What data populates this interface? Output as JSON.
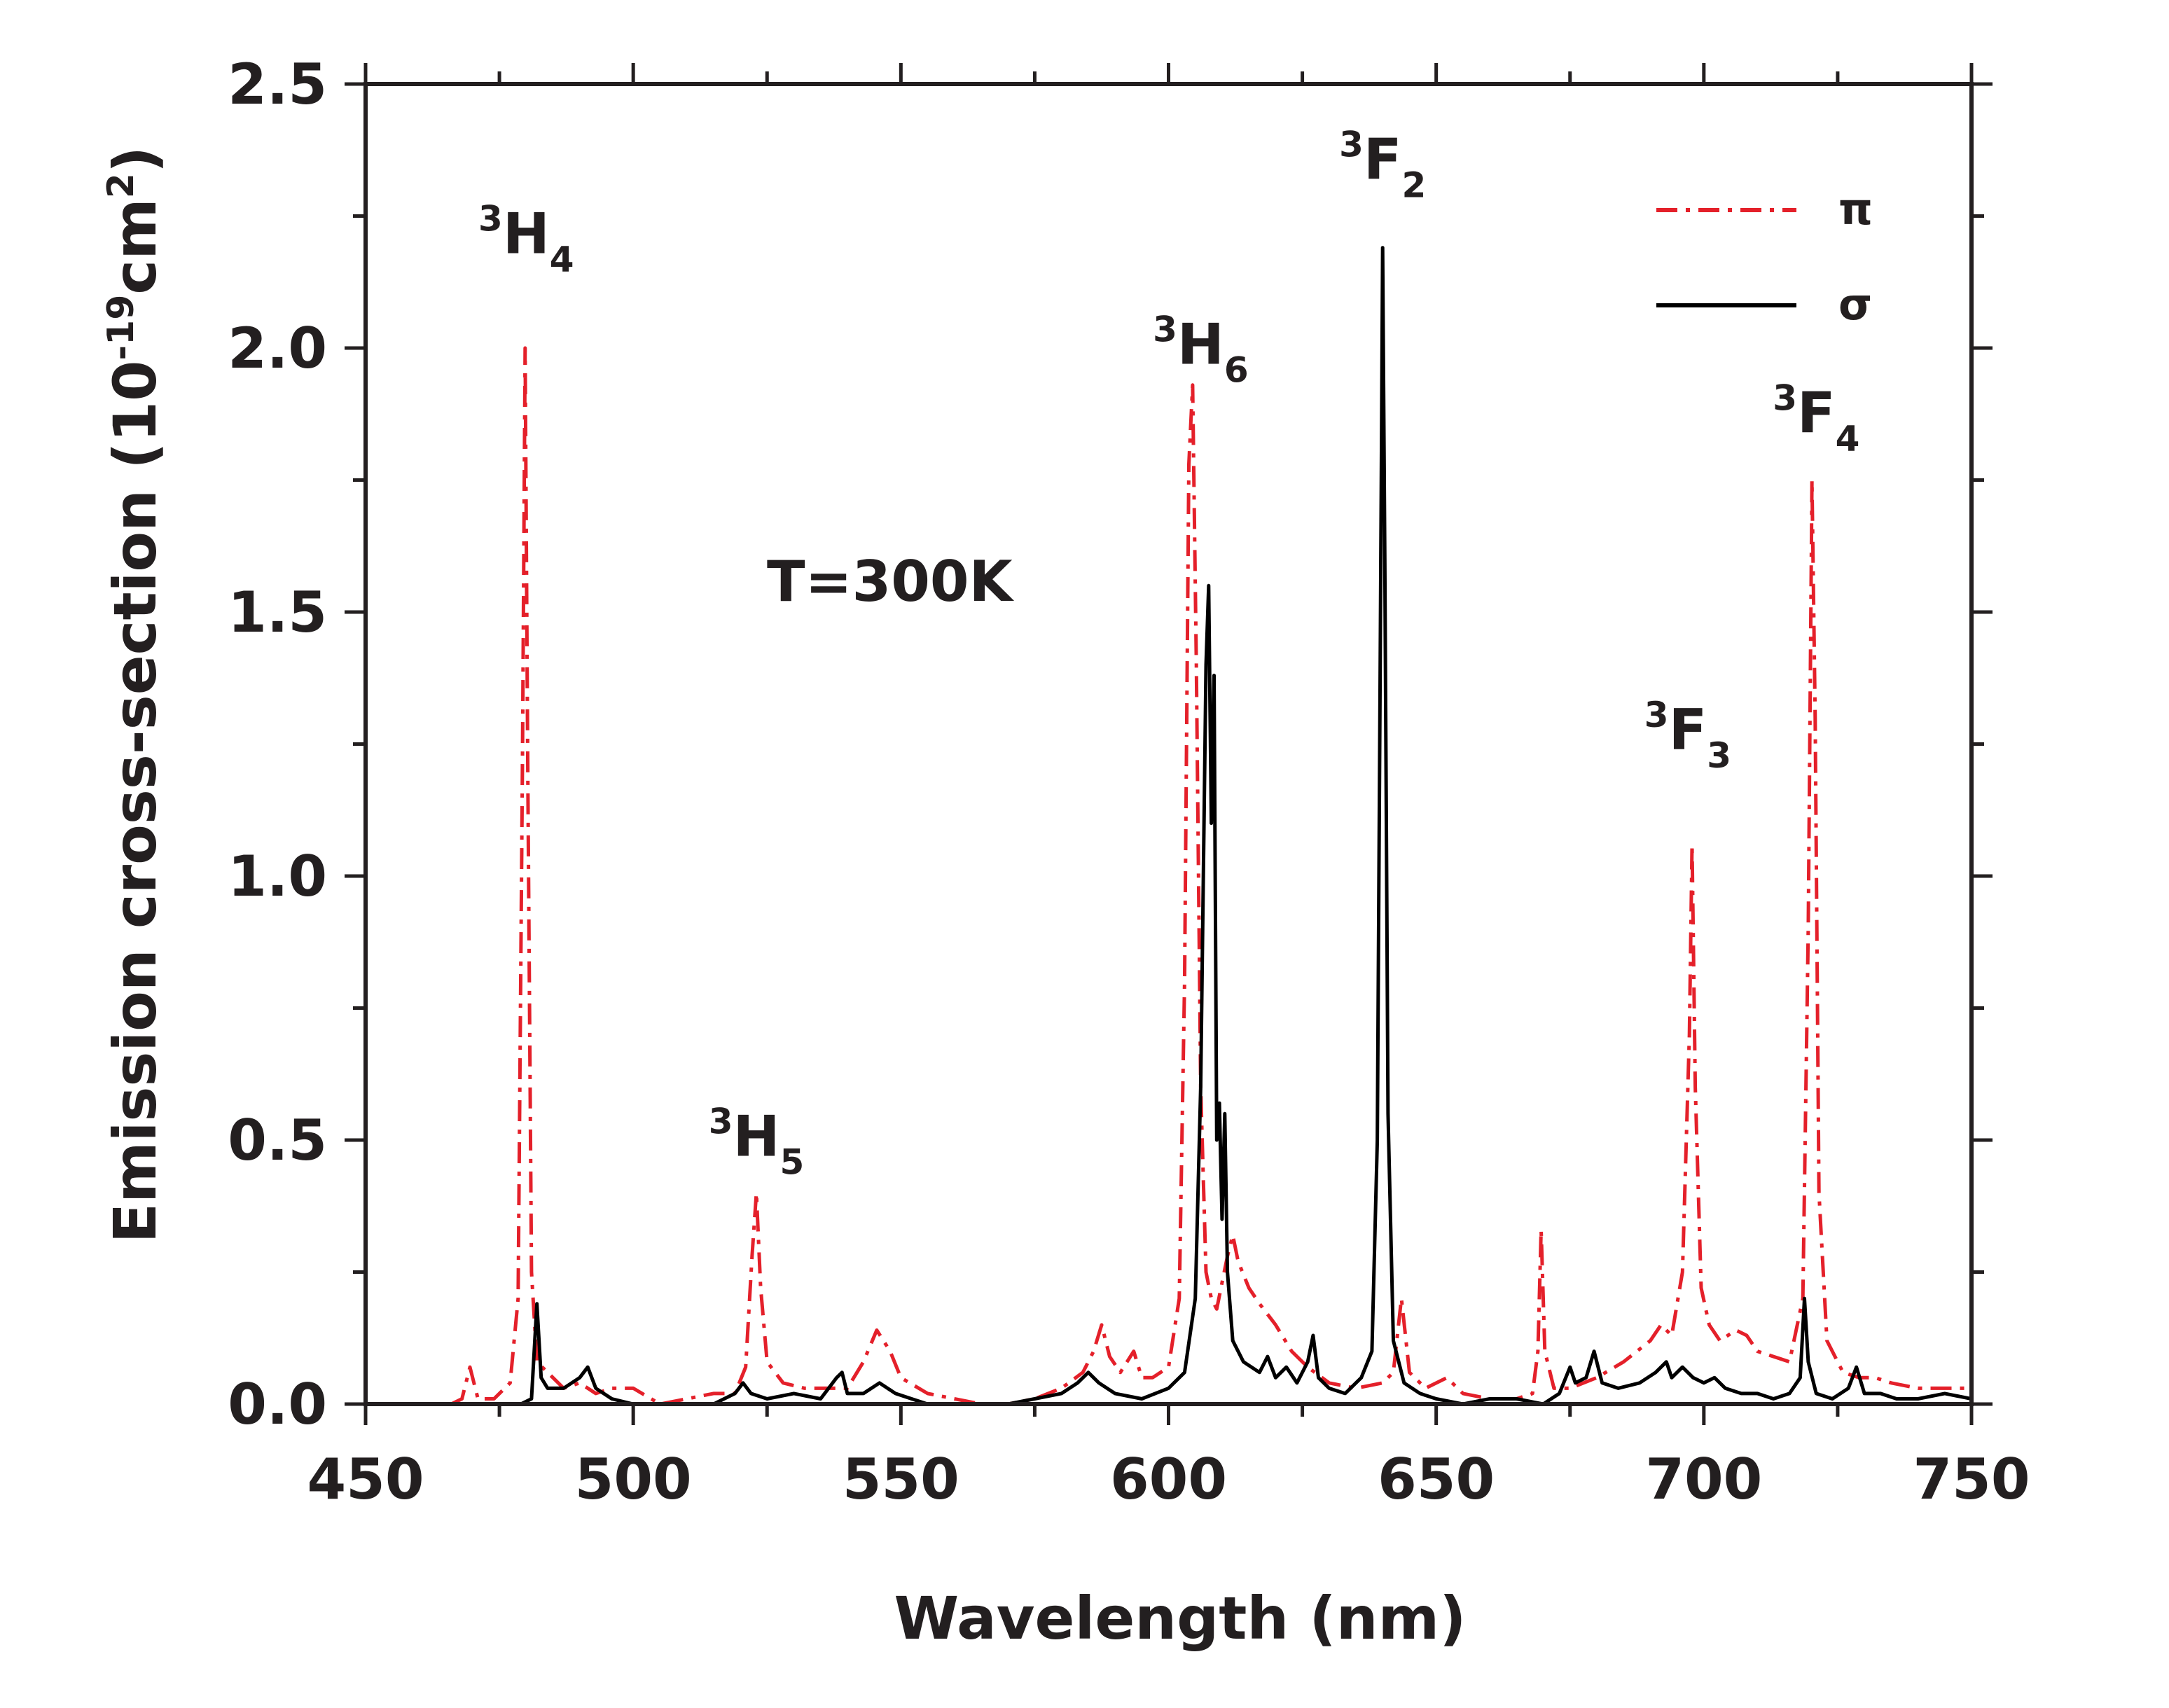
{
  "chart_data": {
    "type": "line",
    "title": "",
    "xlabel": "Wavelength (nm)",
    "ylabel": {
      "main": "Emission cross-section (10",
      "exp": "-19",
      "unit": "cm",
      "unit_exp": "2",
      "close": ")"
    },
    "xlim": [
      450,
      750
    ],
    "ylim": [
      0,
      2.5
    ],
    "x_ticks": [
      450,
      500,
      550,
      600,
      650,
      700,
      750
    ],
    "x_tick_labels": [
      "450",
      "500",
      "550",
      "600",
      "650",
      "700",
      "750"
    ],
    "y_ticks": [
      0,
      0.5,
      1.0,
      1.5,
      2.0,
      2.5
    ],
    "y_tick_labels": [
      "0.0",
      "0.5",
      "1.0",
      "1.5",
      "2.0",
      "2.5"
    ],
    "grid": false,
    "legend_position": "top-right",
    "temperature_label": "T=300K",
    "annotations": [
      {
        "sup": "3",
        "base": "H",
        "sub": "4",
        "x": 480,
        "y": 2.18
      },
      {
        "sup": "3",
        "base": "H",
        "sub": "5",
        "x": 523,
        "y": 0.47
      },
      {
        "sup": "3",
        "base": "H",
        "sub": "6",
        "x": 606,
        "y": 1.97
      },
      {
        "sup": "3",
        "base": "F",
        "sub": "2",
        "x": 640,
        "y": 2.32
      },
      {
        "sup": "3",
        "base": "F",
        "sub": "3",
        "x": 697,
        "y": 1.24
      },
      {
        "sup": "3",
        "base": "F",
        "sub": "4",
        "x": 721,
        "y": 1.84
      }
    ],
    "series": [
      {
        "name": "π",
        "color": "#e4202a",
        "dash": "dashdot",
        "points": [
          [
            466,
            0.0
          ],
          [
            468,
            0.01
          ],
          [
            469.5,
            0.07
          ],
          [
            471,
            0.01
          ],
          [
            474,
            0.01
          ],
          [
            477,
            0.04
          ],
          [
            478.5,
            0.2
          ],
          [
            479.3,
            1.2
          ],
          [
            479.8,
            2.0
          ],
          [
            480.3,
            1.2
          ],
          [
            481,
            0.25
          ],
          [
            482,
            0.08
          ],
          [
            484,
            0.06
          ],
          [
            487,
            0.03
          ],
          [
            490,
            0.04
          ],
          [
            493,
            0.02
          ],
          [
            496,
            0.03
          ],
          [
            500,
            0.03
          ],
          [
            505,
            0.0
          ],
          [
            510,
            0.01
          ],
          [
            515,
            0.02
          ],
          [
            519,
            0.02
          ],
          [
            521,
            0.07
          ],
          [
            522.2,
            0.28
          ],
          [
            523,
            0.4
          ],
          [
            523.8,
            0.22
          ],
          [
            525,
            0.08
          ],
          [
            528,
            0.04
          ],
          [
            532,
            0.03
          ],
          [
            536,
            0.03
          ],
          [
            540,
            0.03
          ],
          [
            543,
            0.08
          ],
          [
            545.5,
            0.14
          ],
          [
            548,
            0.1
          ],
          [
            550,
            0.05
          ],
          [
            555,
            0.02
          ],
          [
            560,
            0.01
          ],
          [
            565,
            0.0
          ],
          [
            570,
            0.0
          ],
          [
            575,
            0.01
          ],
          [
            580,
            0.03
          ],
          [
            584,
            0.06
          ],
          [
            586,
            0.1
          ],
          [
            587.5,
            0.15
          ],
          [
            589,
            0.09
          ],
          [
            591,
            0.06
          ],
          [
            593.5,
            0.1
          ],
          [
            595,
            0.05
          ],
          [
            597,
            0.05
          ],
          [
            600,
            0.07
          ],
          [
            602,
            0.2
          ],
          [
            603,
            0.8
          ],
          [
            603.8,
            1.78
          ],
          [
            604.5,
            1.93
          ],
          [
            605.2,
            1.4
          ],
          [
            606,
            0.6
          ],
          [
            607,
            0.25
          ],
          [
            608,
            0.2
          ],
          [
            609,
            0.18
          ],
          [
            610,
            0.23
          ],
          [
            611,
            0.28
          ],
          [
            612,
            0.32
          ],
          [
            613,
            0.27
          ],
          [
            615,
            0.22
          ],
          [
            617,
            0.19
          ],
          [
            620,
            0.15
          ],
          [
            623,
            0.1
          ],
          [
            626,
            0.07
          ],
          [
            630,
            0.04
          ],
          [
            635,
            0.03
          ],
          [
            640,
            0.04
          ],
          [
            642,
            0.06
          ],
          [
            643.5,
            0.2
          ],
          [
            645,
            0.06
          ],
          [
            648,
            0.03
          ],
          [
            652,
            0.05
          ],
          [
            655,
            0.02
          ],
          [
            660,
            0.01
          ],
          [
            665,
            0.01
          ],
          [
            668,
            0.02
          ],
          [
            669,
            0.1
          ],
          [
            669.6,
            0.33
          ],
          [
            670.3,
            0.1
          ],
          [
            672,
            0.03
          ],
          [
            675,
            0.03
          ],
          [
            680,
            0.05
          ],
          [
            685,
            0.08
          ],
          [
            690,
            0.12
          ],
          [
            692,
            0.15
          ],
          [
            694,
            0.13
          ],
          [
            696,
            0.25
          ],
          [
            697.3,
            0.7
          ],
          [
            697.8,
            1.06
          ],
          [
            698.4,
            0.6
          ],
          [
            699.5,
            0.22
          ],
          [
            701,
            0.15
          ],
          [
            703,
            0.12
          ],
          [
            706,
            0.14
          ],
          [
            708,
            0.13
          ],
          [
            710,
            0.1
          ],
          [
            713,
            0.09
          ],
          [
            716,
            0.08
          ],
          [
            718.5,
            0.2
          ],
          [
            719.5,
            0.9
          ],
          [
            720.2,
            1.75
          ],
          [
            720.8,
            1.3
          ],
          [
            721.5,
            0.4
          ],
          [
            723,
            0.12
          ],
          [
            726,
            0.06
          ],
          [
            729,
            0.05
          ],
          [
            732,
            0.05
          ],
          [
            735,
            0.04
          ],
          [
            740,
            0.03
          ],
          [
            745,
            0.03
          ],
          [
            750,
            0.03
          ]
        ]
      },
      {
        "name": "σ",
        "color": "#000000",
        "dash": "solid",
        "points": [
          [
            479,
            0.0
          ],
          [
            481,
            0.01
          ],
          [
            482,
            0.19
          ],
          [
            482.8,
            0.05
          ],
          [
            484,
            0.03
          ],
          [
            487,
            0.03
          ],
          [
            490,
            0.05
          ],
          [
            491.5,
            0.07
          ],
          [
            493,
            0.03
          ],
          [
            496,
            0.01
          ],
          [
            500,
            0.0
          ],
          [
            505,
            0.0
          ],
          [
            510,
            0.0
          ],
          [
            515,
            0.0
          ],
          [
            519,
            0.02
          ],
          [
            520.5,
            0.04
          ],
          [
            522,
            0.02
          ],
          [
            525,
            0.01
          ],
          [
            530,
            0.02
          ],
          [
            535,
            0.01
          ],
          [
            538,
            0.05
          ],
          [
            539,
            0.06
          ],
          [
            540,
            0.02
          ],
          [
            543,
            0.02
          ],
          [
            546,
            0.04
          ],
          [
            549,
            0.02
          ],
          [
            552,
            0.01
          ],
          [
            555,
            0.0
          ],
          [
            560,
            0.0
          ],
          [
            565,
            0.0
          ],
          [
            570,
            0.0
          ],
          [
            575,
            0.01
          ],
          [
            580,
            0.02
          ],
          [
            583,
            0.04
          ],
          [
            585,
            0.06
          ],
          [
            587,
            0.04
          ],
          [
            590,
            0.02
          ],
          [
            595,
            0.01
          ],
          [
            600,
            0.03
          ],
          [
            603,
            0.06
          ],
          [
            605,
            0.2
          ],
          [
            606,
            0.6
          ],
          [
            607,
            1.4
          ],
          [
            607.5,
            1.55
          ],
          [
            608,
            1.1
          ],
          [
            608.5,
            1.38
          ],
          [
            609,
            0.5
          ],
          [
            609.5,
            0.57
          ],
          [
            610,
            0.35
          ],
          [
            610.5,
            0.55
          ],
          [
            611,
            0.25
          ],
          [
            612,
            0.12
          ],
          [
            614,
            0.08
          ],
          [
            617,
            0.06
          ],
          [
            618.5,
            0.09
          ],
          [
            620,
            0.05
          ],
          [
            622,
            0.07
          ],
          [
            624,
            0.04
          ],
          [
            626,
            0.08
          ],
          [
            627,
            0.13
          ],
          [
            628,
            0.05
          ],
          [
            630,
            0.03
          ],
          [
            633,
            0.02
          ],
          [
            636,
            0.05
          ],
          [
            638,
            0.1
          ],
          [
            639,
            0.5
          ],
          [
            639.5,
            1.33
          ],
          [
            640,
            2.19
          ],
          [
            640.4,
            1.6
          ],
          [
            641,
            0.55
          ],
          [
            642,
            0.12
          ],
          [
            644,
            0.04
          ],
          [
            647,
            0.02
          ],
          [
            650,
            0.01
          ],
          [
            655,
            0.0
          ],
          [
            660,
            0.01
          ],
          [
            665,
            0.01
          ],
          [
            670,
            0.0
          ],
          [
            673,
            0.02
          ],
          [
            675,
            0.07
          ],
          [
            676,
            0.04
          ],
          [
            678,
            0.05
          ],
          [
            679.5,
            0.1
          ],
          [
            681,
            0.04
          ],
          [
            684,
            0.03
          ],
          [
            688,
            0.04
          ],
          [
            691,
            0.06
          ],
          [
            693,
            0.08
          ],
          [
            694,
            0.05
          ],
          [
            696,
            0.07
          ],
          [
            698,
            0.05
          ],
          [
            700,
            0.04
          ],
          [
            702,
            0.05
          ],
          [
            704,
            0.03
          ],
          [
            707,
            0.02
          ],
          [
            710,
            0.02
          ],
          [
            713,
            0.01
          ],
          [
            716,
            0.02
          ],
          [
            718,
            0.05
          ],
          [
            718.8,
            0.2
          ],
          [
            719.5,
            0.08
          ],
          [
            721,
            0.02
          ],
          [
            724,
            0.01
          ],
          [
            727,
            0.03
          ],
          [
            728.5,
            0.07
          ],
          [
            730,
            0.02
          ],
          [
            733,
            0.02
          ],
          [
            736,
            0.01
          ],
          [
            740,
            0.01
          ],
          [
            745,
            0.02
          ],
          [
            750,
            0.01
          ]
        ]
      }
    ]
  }
}
